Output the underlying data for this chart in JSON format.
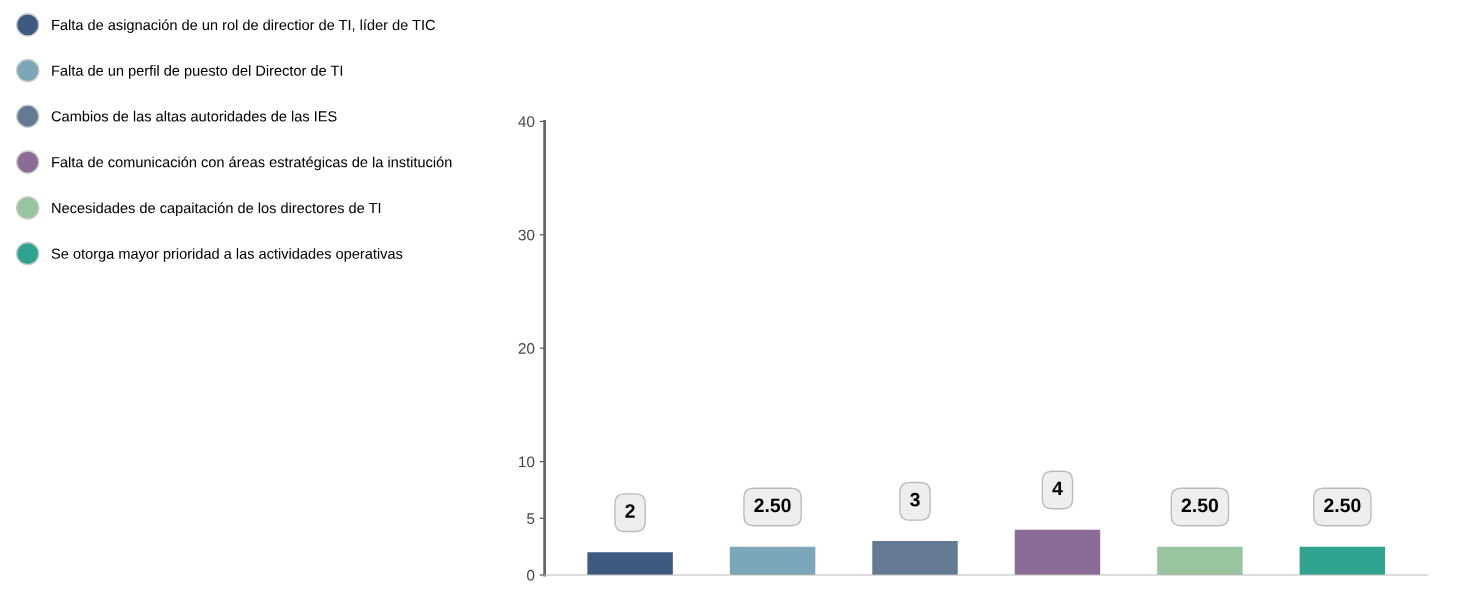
{
  "chart_data": {
    "type": "bar",
    "categories": [
      null,
      null,
      null,
      null,
      null,
      null
    ],
    "series": [
      {
        "name": "Falta de asignación de un rol de directior de TI, líder de TIC",
        "color": "#3f5a80",
        "values": [
          2,
          null,
          null,
          null,
          null,
          null
        ]
      },
      {
        "name": "Falta de un perfil de puesto del Director de TI",
        "color": "#7ba7b8",
        "values": [
          null,
          2.5,
          null,
          null,
          null,
          null
        ]
      },
      {
        "name": "Cambios de las altas autoridades de las IES",
        "color": "#647a94",
        "values": [
          null,
          null,
          3,
          null,
          null,
          null
        ]
      },
      {
        "name": "Falta de comunicación con áreas estratégicas de la institución",
        "color": "#8a6c97",
        "values": [
          null,
          null,
          null,
          4,
          null,
          null
        ]
      },
      {
        "name": "Necesidades de capaitación de los directores de TI",
        "color": "#98c4a0",
        "values": [
          null,
          null,
          null,
          null,
          2.5,
          null
        ]
      },
      {
        "name": "Se otorga mayor prioridad a las actividades operativas",
        "color": "#2fa38f",
        "values": [
          null,
          null,
          null,
          null,
          null,
          2.5
        ]
      }
    ],
    "value_labels": [
      "2",
      "2.50",
      "3",
      "4",
      "2.50",
      "2.50"
    ],
    "ylim": [
      0,
      40
    ],
    "yticks": [
      0,
      5,
      10,
      20,
      30,
      40
    ],
    "grid": false,
    "legend": "left"
  }
}
